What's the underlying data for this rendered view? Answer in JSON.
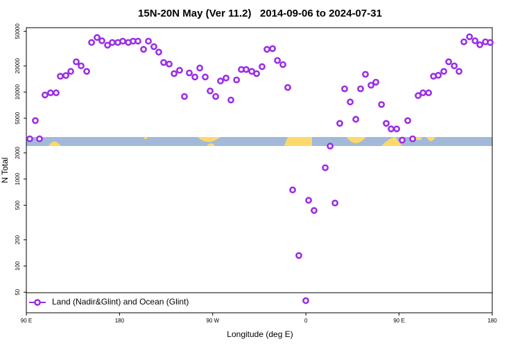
{
  "chart_data": {
    "type": "scatter",
    "title": "15N-20N May (Ver 11.2)   2014-09-06 to 2024-07-31",
    "x_label": "Longitude (deg E)",
    "y_label": "N Total",
    "log_y": true,
    "legend": "bottom-left",
    "xlim": [
      90,
      540
    ],
    "xticks": [
      {
        "value": 90,
        "label": "90 E"
      },
      180,
      {
        "value": 270,
        "label": "90 W"
      },
      {
        "value": 360,
        "label": "0"
      },
      {
        "value": 450,
        "label": "90 E"
      },
      {
        "value": 540,
        "label": "180"
      }
    ],
    "ylim": [
      29,
      55000
    ],
    "yticks": [
      50,
      100,
      200,
      500,
      1000,
      2000,
      5000,
      10000,
      20000,
      50000
    ],
    "series": [
      {
        "name": "Land (Nadir&Glint) and Ocean (Glint)",
        "color": "#9b2ee6",
        "x": [
          93.3,
          98.7,
          102.7,
          108,
          113.4,
          118.8,
          122.8,
          128.2,
          132.9,
          138.2,
          142.9,
          148.3,
          153,
          158.3,
          163,
          168.4,
          173,
          178.4,
          183.1,
          188.5,
          193.1,
          197.8,
          203.2,
          207.9,
          213.2,
          217.9,
          222.6,
          228,
          232.7,
          238,
          242.7,
          247.4,
          252.8,
          257.5,
          262.8,
          267.5,
          272.9,
          277.5,
          282.9,
          287.6,
          293,
          297.6,
          302.3,
          307.7,
          312.4,
          317.7,
          322.4,
          327.8,
          332.5,
          337.8,
          342.5,
          347.2,
          353.2,
          359.9,
          362.6,
          367.9,
          378.7,
          383.4,
          388.1,
          392.7,
          397.4,
          402.8,
          408.2,
          412.8,
          417.5,
          422.9,
          427.6,
          433,
          437.6,
          442.3,
          447.7,
          453,
          458.4,
          463.1,
          468.4,
          473.1,
          478.5,
          483.2,
          487.9,
          493.2,
          497.9,
          503.3,
          507.9,
          512.6,
          518,
          523.4,
          528,
          533.4,
          538
        ],
        "values": [
          2900,
          4700,
          2900,
          9250,
          9800,
          9800,
          15200,
          15500,
          17300,
          22300,
          20000,
          17300,
          37200,
          42400,
          38900,
          34600,
          37200,
          37200,
          38500,
          37200,
          38500,
          38500,
          31000,
          38500,
          33300,
          28800,
          21900,
          21000,
          16300,
          17800,
          8900,
          16600,
          14900,
          18900,
          14900,
          10300,
          8900,
          13400,
          14500,
          8100,
          13800,
          18200,
          18200,
          17300,
          16300,
          19600,
          31000,
          31600,
          23100,
          20700,
          11300,
          750,
          132,
          40,
          570,
          435,
          1350,
          2390,
          530,
          4370,
          10900,
          7700,
          4870,
          10900,
          16000,
          12000,
          13000,
          7200,
          4370,
          3770,
          3770,
          2800,
          4700,
          2900,
          9100,
          9800,
          9800,
          15200,
          15600,
          17300,
          22300,
          20000,
          17300,
          37800,
          43200,
          38900,
          35000,
          37800,
          37200
        ]
      }
    ]
  }
}
